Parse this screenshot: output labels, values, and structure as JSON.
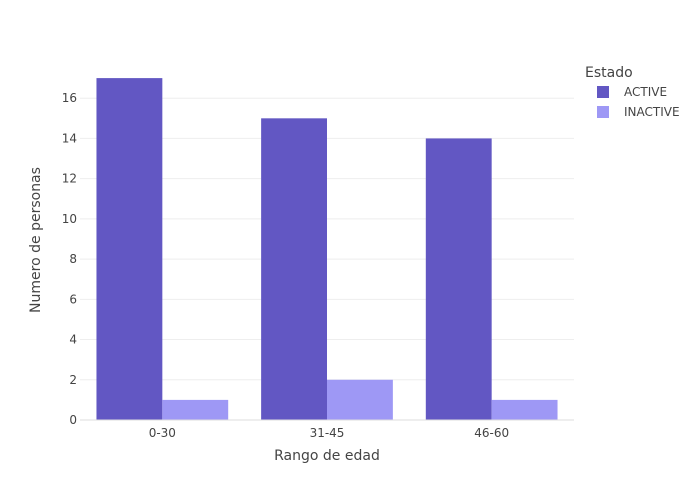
{
  "chart_data": {
    "type": "bar",
    "title": "",
    "xlabel": "Rango de edad",
    "ylabel": "Numero de personas",
    "categories": [
      "0-30",
      "31-45",
      "46-60"
    ],
    "series": [
      {
        "name": "ACTIVE",
        "values": [
          17,
          15,
          14
        ],
        "color": "#6257C3"
      },
      {
        "name": "INACTIVE",
        "values": [
          1,
          2,
          1
        ],
        "color": "#9E98F5"
      }
    ],
    "ylim": [
      0,
      17.9
    ],
    "yticks": [
      0,
      2,
      4,
      6,
      8,
      10,
      12,
      14,
      16
    ],
    "grid": true,
    "legend": {
      "title": "Estado",
      "placement": "top-right"
    }
  }
}
